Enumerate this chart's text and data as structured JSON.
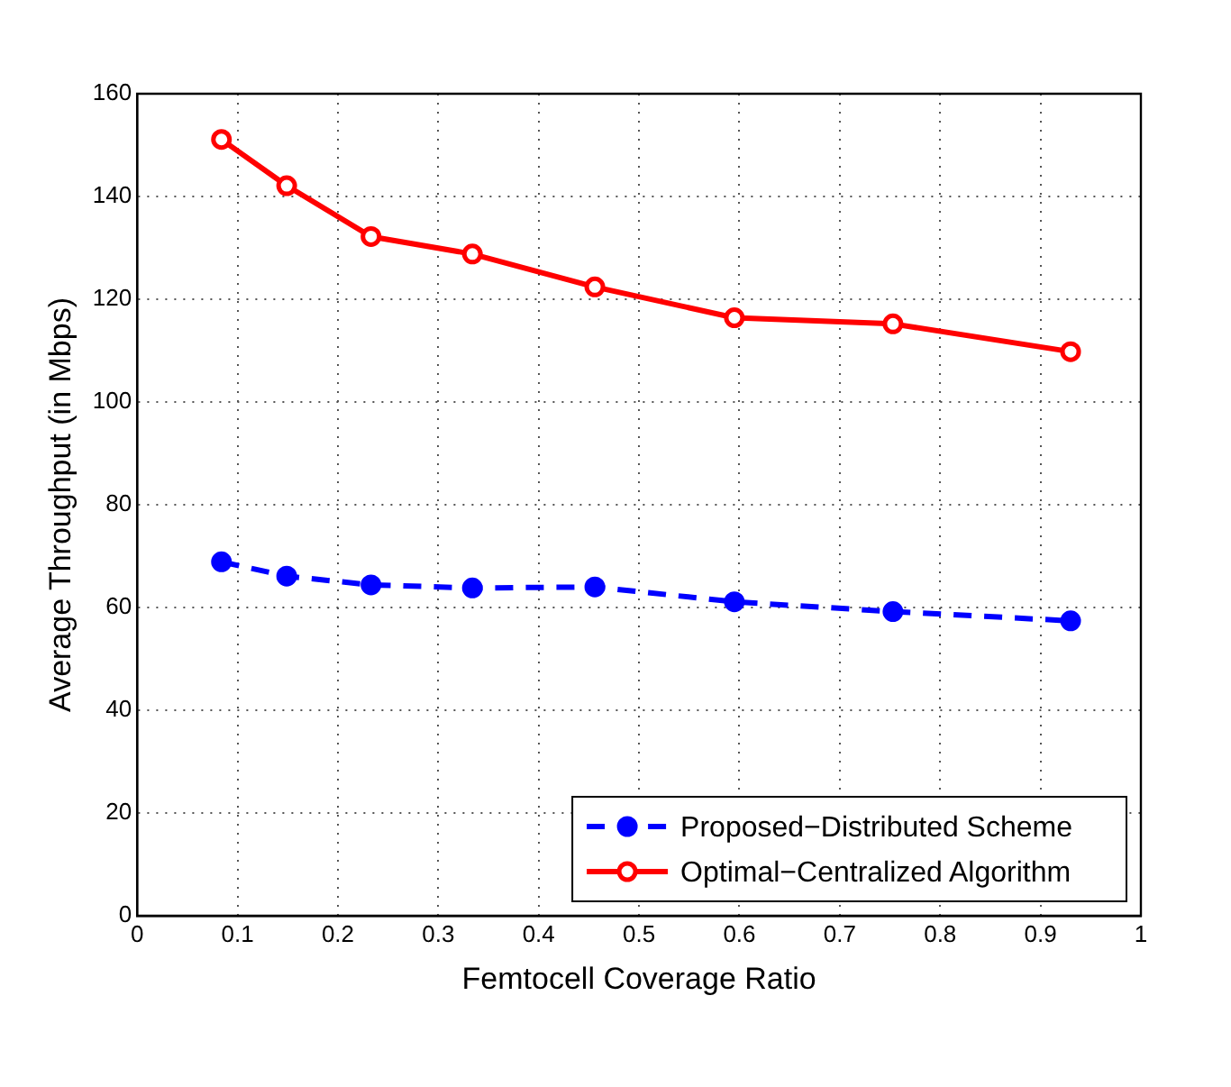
{
  "chart_data": {
    "type": "line",
    "xlabel": "Femtocell Coverage Ratio",
    "ylabel": "Average Throughput (in Mbps)",
    "x": [
      0.084,
      0.149,
      0.233,
      0.334,
      0.456,
      0.595,
      0.753,
      0.93
    ],
    "series": [
      {
        "name": "Proposed−Distributed Scheme",
        "color": "#0000ff",
        "marker": "circle",
        "line_style": "dashed",
        "values": [
          68.9,
          66.1,
          64.4,
          63.8,
          64.0,
          61.1,
          59.2,
          57.4
        ]
      },
      {
        "name": "Optimal−Centralized Algorithm",
        "color": "#ff0000",
        "marker": "circle",
        "line_style": "solid",
        "values": [
          151.1,
          142.1,
          132.2,
          128.8,
          122.4,
          116.4,
          115.2,
          109.8
        ]
      }
    ],
    "xlim": [
      0,
      1
    ],
    "xticks": [
      0,
      0.1,
      0.2,
      0.3,
      0.4,
      0.5,
      0.6,
      0.7,
      0.8,
      0.9,
      1
    ],
    "ylim": [
      0,
      160
    ],
    "yticks": [
      0,
      20,
      40,
      60,
      80,
      100,
      120,
      140,
      160
    ],
    "grid": true,
    "legend": "bottom right"
  }
}
